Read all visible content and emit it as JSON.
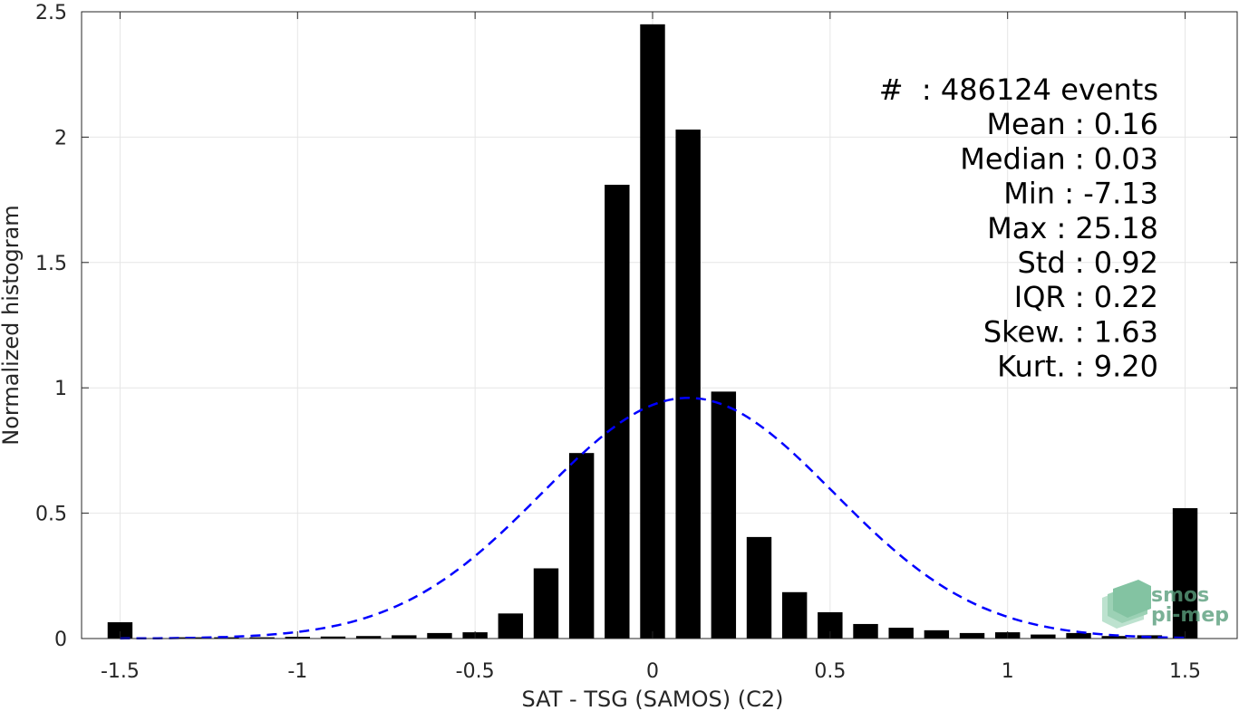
{
  "chart_data": {
    "type": "bar",
    "xlabel": "SAT - TSG (SAMOS) (C2)",
    "ylabel": "Normalized histogram",
    "xlim": [
      -1.6,
      1.6
    ],
    "ylim": [
      0,
      2.5
    ],
    "xticks": [
      -1.5,
      -1,
      -0.5,
      0,
      0.5,
      1,
      1.5
    ],
    "xtick_labels": [
      "-1.5",
      "-1",
      "-0.5",
      "0",
      "0.5",
      "1",
      "1.5"
    ],
    "yticks": [
      0,
      0.5,
      1,
      1.5,
      2,
      2.5
    ],
    "ytick_labels": [
      "0",
      "0.5",
      "1",
      "1.5",
      "2",
      "2.5"
    ],
    "grid": true,
    "bar_color": "#000000",
    "bin_width": 0.1,
    "bars": {
      "x": [
        -1.5,
        -1.3,
        -1.2,
        -1.1,
        -1.0,
        -0.9,
        -0.8,
        -0.7,
        -0.6,
        -0.5,
        -0.4,
        -0.3,
        -0.2,
        -0.1,
        0.0,
        0.1,
        0.2,
        0.3,
        0.4,
        0.5,
        0.6,
        0.7,
        0.8,
        0.9,
        1.0,
        1.1,
        1.2,
        1.3,
        1.4,
        1.5
      ],
      "values": [
        0.065,
        0.005,
        0.005,
        0.005,
        0.007,
        0.008,
        0.01,
        0.013,
        0.022,
        0.025,
        0.1,
        0.28,
        0.74,
        1.81,
        2.45,
        2.03,
        0.985,
        0.405,
        0.185,
        0.105,
        0.058,
        0.043,
        0.033,
        0.022,
        0.025,
        0.016,
        0.022,
        0.01,
        0.013,
        0.52
      ]
    },
    "fit_curve": {
      "style": "dashed",
      "color": "#0000ff",
      "mean": 0.1,
      "peak": 0.96,
      "sigma": 0.41,
      "x_range": [
        -1.5,
        1.5
      ]
    },
    "stats": [
      {
        "label": "#  ",
        "value": ": 486124 events"
      },
      {
        "label": "Mean ",
        "value": ": 0.16"
      },
      {
        "label": "Median ",
        "value": ": 0.03"
      },
      {
        "label": "Min ",
        "value": ": -7.13"
      },
      {
        "label": "Max ",
        "value": ": 25.18"
      },
      {
        "label": "Std ",
        "value": ": 0.92"
      },
      {
        "label": "IQR ",
        "value": ": 0.22"
      },
      {
        "label": "Skew. ",
        "value": ": 1.63"
      },
      {
        "label": "Kurt. ",
        "value": ": 9.20"
      }
    ],
    "watermark": {
      "line1": "smos",
      "line2": "pi-mep",
      "color": "#5a9e7c"
    }
  }
}
